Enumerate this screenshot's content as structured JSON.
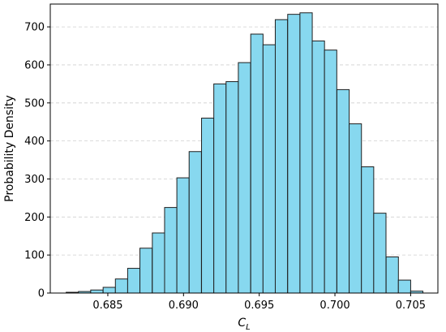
{
  "chart_data": {
    "type": "bar",
    "subtype": "histogram",
    "title": "",
    "xlabel": "C",
    "xlabel_sub": "L",
    "ylabel": "Probability Density",
    "xlim": [
      0.6812,
      0.7068
    ],
    "ylim": [
      0,
      760
    ],
    "grid": "horizontal-dashed",
    "bar_color": "#87d8ef",
    "edge_color": "#1f1f1f",
    "bin_width": 0.000812,
    "bin_starts": [
      0.68225,
      0.68306,
      0.68387,
      0.68469,
      0.6855,
      0.68631,
      0.68712,
      0.68794,
      0.68875,
      0.68956,
      0.69037,
      0.69119,
      0.692,
      0.69281,
      0.69362,
      0.69444,
      0.69525,
      0.69606,
      0.69688,
      0.69769,
      0.6985,
      0.69931,
      0.70013,
      0.70094,
      0.70175,
      0.70256,
      0.70338,
      0.70419,
      0.705
    ],
    "values": [
      2,
      4,
      8,
      15,
      37,
      65,
      118,
      158,
      225,
      303,
      372,
      460,
      550,
      556,
      606,
      681,
      653,
      719,
      733,
      737,
      663,
      639,
      535,
      445,
      332,
      210,
      95,
      34,
      5
    ],
    "x_ticks": [
      0.685,
      0.69,
      0.695,
      0.7,
      0.705
    ],
    "x_tick_labels": [
      "0.685",
      "0.690",
      "0.695",
      "0.700",
      "0.705"
    ],
    "y_ticks": [
      0,
      100,
      200,
      300,
      400,
      500,
      600,
      700
    ],
    "y_tick_labels": [
      "0",
      "100",
      "200",
      "300",
      "400",
      "500",
      "600",
      "700"
    ]
  }
}
